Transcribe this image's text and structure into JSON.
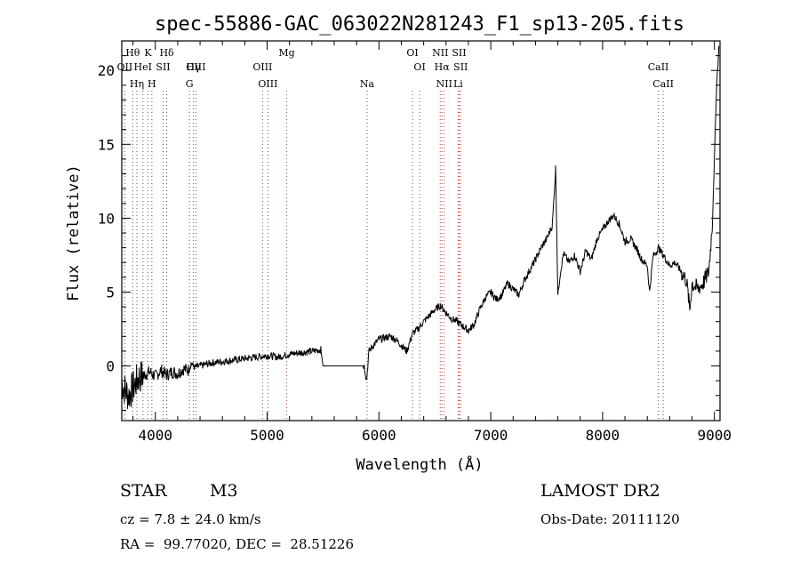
{
  "chart_data": {
    "type": "line",
    "title": "spec-55886-GAC_063022N281243_F1_sp13-205.fits",
    "xlabel": "Wavelength (Å)",
    "ylabel": "Flux (relative)",
    "xlim": [
      3700,
      9050
    ],
    "ylim": [
      -3.7,
      22
    ],
    "xticks": [
      4000,
      5000,
      6000,
      7000,
      8000,
      9000
    ],
    "xtick_labels": [
      "4000",
      "5000",
      "6000",
      "7000",
      "8000",
      "9000"
    ],
    "yticks": [
      0,
      5,
      10,
      15,
      20
    ],
    "ytick_labels": [
      "0",
      "5",
      "10",
      "15",
      "20"
    ],
    "grid": false,
    "series": [
      {
        "x": [
          3700,
          3760,
          3800,
          3850,
          3900,
          3950,
          4000,
          4050,
          4100,
          4150,
          4200,
          4250,
          4300,
          4320,
          4350,
          4400,
          4500,
          4600,
          4700,
          4800,
          4900,
          5000,
          5100,
          5200,
          5300,
          5400,
          5480,
          5500,
          5600,
          5700,
          5800,
          5870,
          5890,
          5910,
          5950,
          6000,
          6050,
          6100,
          6150,
          6200,
          6250,
          6300,
          6350,
          6400,
          6450,
          6500,
          6550,
          6600,
          6650,
          6700,
          6750,
          6800,
          6850,
          6900,
          6950,
          7000,
          7050,
          7100,
          7150,
          7200,
          7250,
          7300,
          7350,
          7400,
          7450,
          7500,
          7550,
          7580,
          7600,
          7620,
          7650,
          7700,
          7750,
          7800,
          7850,
          7900,
          7950,
          8000,
          8050,
          8100,
          8150,
          8200,
          8250,
          8300,
          8350,
          8400,
          8420,
          8450,
          8500,
          8550,
          8600,
          8650,
          8700,
          8750,
          8780,
          8800,
          8850,
          8900,
          8950,
          8980,
          9000,
          9020,
          9040
        ],
        "y": [
          -1.2,
          -2.0,
          -1.5,
          -0.8,
          -0.6,
          -0.4,
          -0.7,
          -0.3,
          -0.6,
          -0.4,
          -0.5,
          -0.2,
          -0.3,
          0.2,
          -0.1,
          0.0,
          0.2,
          0.3,
          0.4,
          0.5,
          0.6,
          0.7,
          0.6,
          0.8,
          0.9,
          1.0,
          1.1,
          0.0,
          0.0,
          0.0,
          0.0,
          0.0,
          -1.0,
          1.0,
          1.4,
          1.8,
          1.9,
          2.0,
          1.8,
          1.4,
          1.0,
          2.2,
          2.5,
          3.0,
          3.4,
          3.8,
          4.1,
          3.6,
          3.2,
          3.0,
          2.7,
          2.4,
          2.8,
          3.8,
          4.6,
          5.0,
          4.5,
          4.8,
          5.6,
          5.2,
          4.8,
          5.8,
          6.5,
          7.2,
          8.0,
          8.6,
          9.5,
          13.4,
          4.8,
          6.2,
          7.6,
          7.0,
          7.5,
          6.4,
          7.8,
          7.2,
          8.6,
          9.2,
          9.8,
          10.2,
          9.6,
          8.4,
          8.6,
          8.0,
          7.2,
          6.8,
          5.0,
          7.4,
          8.0,
          7.4,
          6.8,
          7.0,
          6.4,
          5.8,
          3.8,
          5.6,
          5.2,
          5.6,
          6.4,
          9.5,
          14.0,
          19.0,
          21.5
        ]
      }
    ],
    "lines": [
      {
        "label": "Hθ",
        "x": 3798
      },
      {
        "label": "K",
        "x": 3934
      },
      {
        "label": "Hδ",
        "x": 4102
      },
      {
        "label": "OII",
        "x": 3727
      },
      {
        "label": "HeI",
        "x": 3889
      },
      {
        "label": "SII",
        "x": 4070
      },
      {
        "label": "OIII",
        "x": 4363
      },
      {
        "label": "Hη",
        "x": 3835
      },
      {
        "label": "H",
        "x": 3969
      },
      {
        "label": "Hγ",
        "x": 4341
      },
      {
        "label": "G",
        "x": 4305
      },
      {
        "label": "OIII",
        "x": 4959
      },
      {
        "label": "OIII",
        "x": 5007
      },
      {
        "label": "Mg",
        "x": 5175
      },
      {
        "label": "Na",
        "x": 5894
      },
      {
        "label": "OI",
        "x": 6300
      },
      {
        "label": "OI",
        "x": 6364
      },
      {
        "label": "NII",
        "x": 6548
      },
      {
        "label": "Hα",
        "x": 6563
      },
      {
        "label": "NII",
        "x": 6584
      },
      {
        "label": "SII",
        "x": 6717
      },
      {
        "label": "Li",
        "x": 6708
      },
      {
        "label": "SII",
        "x": 6731
      },
      {
        "label": "CaII",
        "x": 8498
      },
      {
        "label": "CaII",
        "x": 8542
      }
    ]
  },
  "info": {
    "class_label": "STAR",
    "subclass": "M3",
    "survey": "LAMOST DR2",
    "cz": "cz = 7.8 ± 24.0 km/s",
    "obs_date": "Obs-Date: 20111120",
    "coords": "RA =  99.77020, DEC =  28.51226"
  }
}
